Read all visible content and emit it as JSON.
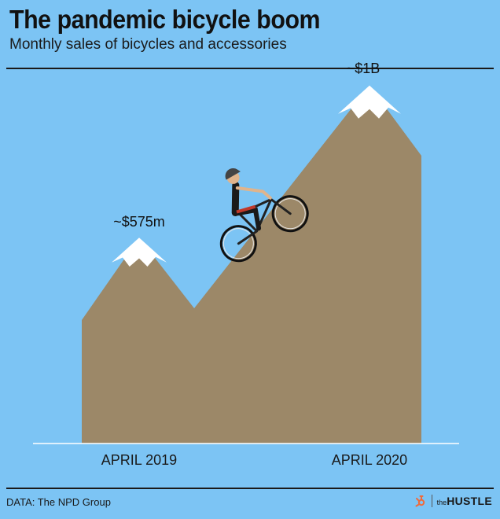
{
  "title": "The pandemic bicycle boom",
  "subtitle": "Monthly sales of bicycles and accessories",
  "source": "DATA: The NPD Group",
  "logo": {
    "the": "the",
    "name": "HUSTLE"
  },
  "colors": {
    "background": "#7cc4f4",
    "mountain": "#9c8868",
    "snow": "#ffffff"
  },
  "icons": [
    "cyclist-icon",
    "hubspot-sprocket-icon"
  ],
  "chart_data": {
    "type": "area",
    "categories": [
      "APRIL 2019",
      "APRIL 2020"
    ],
    "series": [
      {
        "values": [
          575,
          1000
        ],
        "labels": [
          "~$575m",
          "~$1B"
        ]
      }
    ],
    "ylim": [
      0,
      1050
    ],
    "grid": false
  }
}
